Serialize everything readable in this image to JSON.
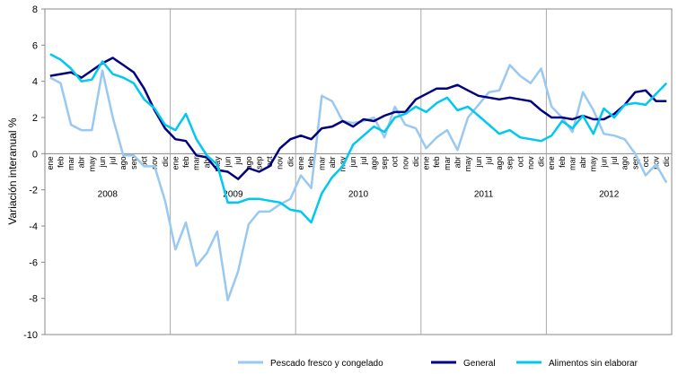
{
  "chart_data": {
    "type": "line",
    "y_label": "Variación interanual %",
    "categories": [
      "ene",
      "feb",
      "mar",
      "abr",
      "may",
      "jun",
      "jul",
      "ago",
      "sep",
      "oct",
      "nov",
      "dic",
      "ene",
      "feb",
      "mar",
      "abr",
      "may",
      "jun",
      "jul",
      "ago",
      "sep",
      "oct",
      "nov",
      "dic",
      "ene",
      "feb",
      "mar",
      "abr",
      "may",
      "jun",
      "jul",
      "ago",
      "sep",
      "oct",
      "nov",
      "dic",
      "ene",
      "feb",
      "mar",
      "abr",
      "may",
      "jun",
      "jul",
      "ago",
      "sep",
      "oct",
      "nov",
      "dic",
      "ene",
      "feb",
      "mar",
      "abr",
      "may",
      "jun",
      "jul",
      "ago",
      "sep",
      "oct",
      "nov",
      "dic"
    ],
    "groups": [
      "2008",
      "2009",
      "2010",
      "2011",
      "2012"
    ],
    "ylim": [
      -10,
      8
    ],
    "yticks": [
      -10,
      -8,
      -6,
      -4,
      -2,
      0,
      2,
      4,
      6,
      8
    ],
    "series": [
      {
        "name": "Pescado fresco y congelado",
        "color": "#99c8f0",
        "values": [
          4.2,
          3.9,
          1.6,
          1.3,
          1.3,
          4.6,
          2.0,
          -0.1,
          -0.1,
          -0.7,
          -0.7,
          -2.6,
          -5.3,
          -3.8,
          -6.2,
          -5.5,
          -4.3,
          -8.1,
          -6.5,
          -3.9,
          -3.2,
          -3.2,
          -2.8,
          -2.5,
          -1.2,
          -1.9,
          3.2,
          2.9,
          1.8,
          1.7,
          1.8,
          2.0,
          0.9,
          2.6,
          1.6,
          1.4,
          0.3,
          0.9,
          1.3,
          0.2,
          2.0,
          2.7,
          3.4,
          3.5,
          4.9,
          4.3,
          3.9,
          4.7,
          2.6,
          2.0,
          1.2,
          3.4,
          2.4,
          1.1,
          1.0,
          0.8,
          0.0,
          -1.2,
          -0.6,
          -1.6
        ]
      },
      {
        "name": "General",
        "color": "#000080",
        "values": [
          4.3,
          4.4,
          4.5,
          4.2,
          4.6,
          5.0,
          5.3,
          4.9,
          4.5,
          3.6,
          2.4,
          1.4,
          0.8,
          0.7,
          -0.1,
          -0.2,
          -0.9,
          -1.0,
          -1.4,
          -0.8,
          -1.0,
          -0.7,
          0.3,
          0.8,
          1.0,
          0.8,
          1.4,
          1.5,
          1.8,
          1.5,
          1.9,
          1.8,
          2.1,
          2.3,
          2.3,
          3.0,
          3.3,
          3.6,
          3.6,
          3.8,
          3.5,
          3.2,
          3.1,
          3.0,
          3.1,
          3.0,
          2.9,
          2.4,
          2.0,
          2.0,
          1.9,
          2.1,
          1.9,
          1.9,
          2.2,
          2.7,
          3.4,
          3.5,
          2.9,
          2.9
        ]
      },
      {
        "name": "Alimentos sin elaborar",
        "color": "#00c8f0",
        "values": [
          5.5,
          5.2,
          4.7,
          4.0,
          4.1,
          5.1,
          4.4,
          4.2,
          3.9,
          3.0,
          2.5,
          1.6,
          1.3,
          2.2,
          0.8,
          -0.1,
          -0.6,
          -2.7,
          -2.7,
          -2.5,
          -2.5,
          -2.6,
          -2.7,
          -3.1,
          -3.2,
          -3.8,
          -2.2,
          -1.3,
          -0.7,
          0.5,
          1.0,
          1.5,
          1.2,
          2.0,
          2.2,
          2.6,
          2.3,
          2.8,
          3.1,
          2.4,
          2.6,
          2.1,
          1.6,
          1.1,
          1.3,
          0.9,
          0.8,
          0.7,
          1.0,
          1.8,
          1.4,
          2.1,
          1.1,
          2.5,
          2.0,
          2.7,
          2.8,
          2.7,
          3.3,
          3.9
        ]
      }
    ]
  }
}
